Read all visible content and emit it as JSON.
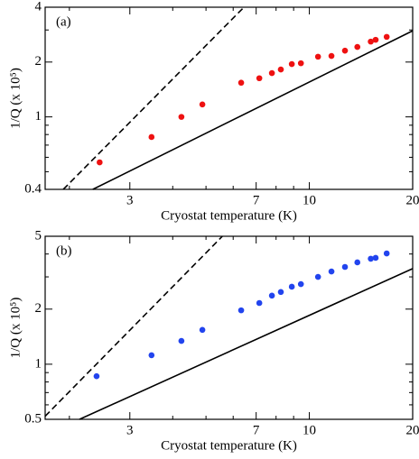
{
  "chart_data": [
    {
      "type": "scatter",
      "annotation": "(a)",
      "xlabel": "Cryostat temperature (K)",
      "ylabel": "1/Q (x 10⁵)",
      "xlog": true,
      "ylog": true,
      "xlim": [
        1.7,
        20
      ],
      "ylim": [
        0.4,
        4
      ],
      "xticks": [
        3,
        7,
        10,
        20
      ],
      "xminorticks": [
        2,
        4,
        5,
        6,
        8,
        9
      ],
      "yticks": [
        0.4,
        1,
        2,
        4
      ],
      "yminorticks": [
        0.5,
        0.6,
        0.7,
        0.8,
        0.9,
        3
      ],
      "series": [
        {
          "color": "#ee1111",
          "x": [
            2.45,
            3.47,
            4.24,
            4.88,
            6.33,
            7.15,
            7.78,
            8.26,
            8.89,
            9.45,
            10.6,
            11.6,
            12.7,
            13.8,
            15.1,
            15.6,
            16.8
          ],
          "values": [
            0.563,
            0.775,
            1.0,
            1.17,
            1.54,
            1.63,
            1.74,
            1.82,
            1.95,
            1.97,
            2.14,
            2.16,
            2.31,
            2.42,
            2.59,
            2.65,
            2.75
          ]
        }
      ],
      "lines": [
        {
          "style": "dashed",
          "x": [
            1.92,
            6.45
          ],
          "values": [
            0.4,
            4
          ]
        },
        {
          "style": "solid",
          "x": [
            2.34,
            20
          ],
          "values": [
            0.4,
            2.97
          ]
        }
      ]
    },
    {
      "type": "scatter",
      "annotation": "(b)",
      "xlabel": "Cryostat temperature (K)",
      "ylabel": "1/Q (x 10⁵)",
      "xlog": true,
      "ylog": true,
      "xlim": [
        1.7,
        20
      ],
      "ylim": [
        0.5,
        5
      ],
      "xticks": [
        3,
        7,
        10,
        20
      ],
      "xminorticks": [
        2,
        4,
        5,
        6,
        8,
        9
      ],
      "yticks": [
        0.5,
        1,
        2,
        5
      ],
      "yminorticks": [
        0.6,
        0.7,
        0.8,
        0.9,
        3,
        4
      ],
      "series": [
        {
          "color": "#2244ee",
          "x": [
            2.4,
            3.47,
            4.24,
            4.88,
            6.33,
            7.15,
            7.78,
            8.26,
            8.89,
            9.45,
            10.6,
            11.6,
            12.7,
            13.8,
            15.1,
            15.6,
            16.8
          ],
          "values": [
            0.86,
            1.12,
            1.34,
            1.54,
            1.97,
            2.16,
            2.37,
            2.48,
            2.65,
            2.74,
            3.0,
            3.21,
            3.4,
            3.6,
            3.77,
            3.81,
            4.03
          ]
        }
      ],
      "lines": [
        {
          "style": "dashed",
          "x": [
            1.7,
            5.58
          ],
          "values": [
            0.52,
            5
          ]
        },
        {
          "style": "solid",
          "x": [
            2.14,
            20
          ],
          "values": [
            0.5,
            3.33
          ]
        }
      ]
    }
  ]
}
